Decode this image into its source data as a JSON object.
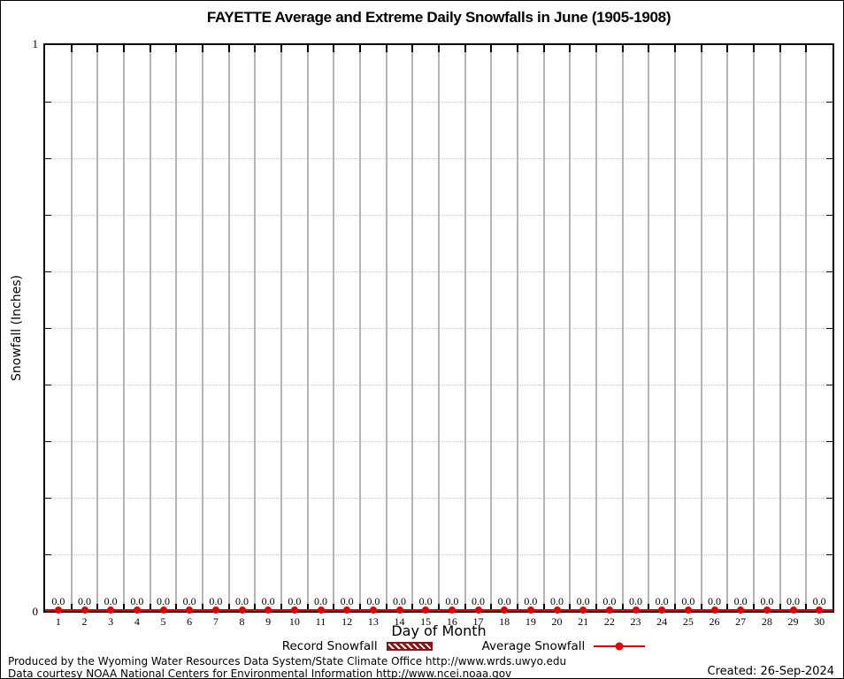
{
  "page": {
    "footer": {
      "line1": "Produced by the Wyoming Water Resources Data System/State Climate Office http://www.wrds.uwyo.edu",
      "line2": "Data courtesy NOAA National Centers for Environmental Information http://www.ncei.noaa.gov",
      "created": "Created: 26-Sep-2024"
    }
  },
  "chart_data": {
    "type": "line",
    "title": "FAYETTE Average and Extreme Daily Snowfalls in June (1905-1908)",
    "xlabel": "Day of Month",
    "ylabel": "Snowfall (Inches)",
    "x": [
      1,
      2,
      3,
      4,
      5,
      6,
      7,
      8,
      9,
      10,
      11,
      12,
      13,
      14,
      15,
      16,
      17,
      18,
      19,
      20,
      21,
      22,
      23,
      24,
      25,
      26,
      27,
      28,
      29,
      30
    ],
    "series": [
      {
        "name": "Record Snowfall",
        "style": "bar-hatched",
        "color": "#8b1414",
        "values": [
          0,
          0,
          0,
          0,
          0,
          0,
          0,
          0,
          0,
          0,
          0,
          0,
          0,
          0,
          0,
          0,
          0,
          0,
          0,
          0,
          0,
          0,
          0,
          0,
          0,
          0,
          0,
          0,
          0,
          0
        ]
      },
      {
        "name": "Average Snowfall",
        "style": "line-with-points",
        "color": "#e60000",
        "values": [
          0,
          0,
          0,
          0,
          0,
          0,
          0,
          0,
          0,
          0,
          0,
          0,
          0,
          0,
          0,
          0,
          0,
          0,
          0,
          0,
          0,
          0,
          0,
          0,
          0,
          0,
          0,
          0,
          0,
          0
        ]
      }
    ],
    "point_label_format": "0.0",
    "ylim": [
      0,
      1
    ],
    "ytick_labels": {
      "top": "1",
      "bottom": "0"
    },
    "y_minor_step": 0.1,
    "grid": true,
    "legend_position": "bottom"
  },
  "colors": {
    "axis": "#000000",
    "day_separator": "#b4b4b4",
    "minor_gridline": "#c8c8c8",
    "average_line": "#e60000",
    "record_fill": "#8b1414"
  }
}
